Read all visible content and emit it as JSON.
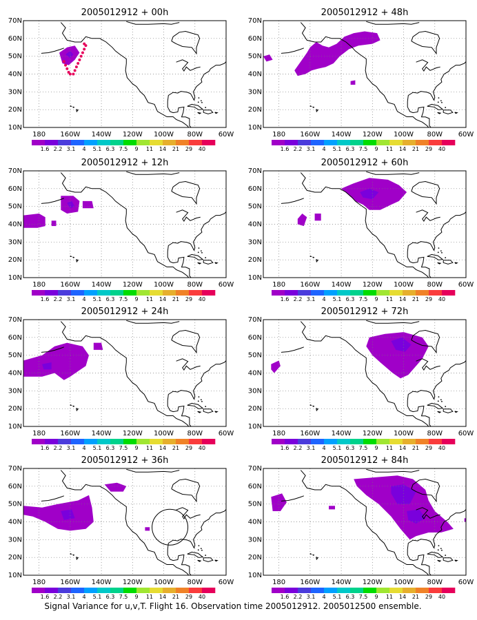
{
  "panels": [
    {
      "title": "2005012912 + 00h",
      "lead": "00h"
    },
    {
      "title": "2005012912 + 48h",
      "lead": "48h"
    },
    {
      "title": "2005012912 + 12h",
      "lead": "12h"
    },
    {
      "title": "2005012912 + 60h",
      "lead": "60h"
    },
    {
      "title": "2005012912 + 24h",
      "lead": "24h"
    },
    {
      "title": "2005012912 + 72h",
      "lead": "72h"
    },
    {
      "title": "2005012912 + 36h",
      "lead": "36h"
    },
    {
      "title": "2005012912 + 84h",
      "lead": "84h"
    }
  ],
  "axes": {
    "lon_range": [
      -190,
      -60
    ],
    "lat_range": [
      10,
      70
    ],
    "lon_ticks": [
      {
        "lon": -180,
        "label": "180"
      },
      {
        "lon": -160,
        "label": "160W"
      },
      {
        "lon": -140,
        "label": "140W"
      },
      {
        "lon": -120,
        "label": "120W"
      },
      {
        "lon": -100,
        "label": "100W"
      },
      {
        "lon": -80,
        "label": "80W"
      },
      {
        "lon": -60,
        "label": "60W"
      }
    ],
    "lat_ticks": [
      {
        "lat": 70,
        "label": "70N"
      },
      {
        "lat": 60,
        "label": "60N"
      },
      {
        "lat": 50,
        "label": "50N"
      },
      {
        "lat": 40,
        "label": "40N"
      },
      {
        "lat": 30,
        "label": "30N"
      },
      {
        "lat": 20,
        "label": "20N"
      },
      {
        "lat": 10,
        "label": "10N"
      }
    ],
    "grid": "dotted"
  },
  "colorbar": {
    "labels": [
      "1.6",
      "2.2",
      "3.1",
      "4",
      "5.1",
      "6.3",
      "7.5",
      "9",
      "11",
      "14",
      "21",
      "29",
      "40"
    ],
    "colors": [
      "#a000c8",
      "#7a00dc",
      "#4b3cdc",
      "#1e64ff",
      "#00a0ff",
      "#00c8c8",
      "#00d28c",
      "#00dc00",
      "#a0e632",
      "#e6dc32",
      "#e6af2d",
      "#f08228",
      "#fa3c3c",
      "#e6005a"
    ]
  },
  "footer": "Signal Variance for u,v,T. Flight 16. Observation time 2005012912. 2005012500 ensemble.",
  "colors": {
    "shade_light": "#a000c8",
    "shade_dark": "#7a00dc",
    "flight_track": "#e6005a",
    "coastline": "#000000"
  }
}
